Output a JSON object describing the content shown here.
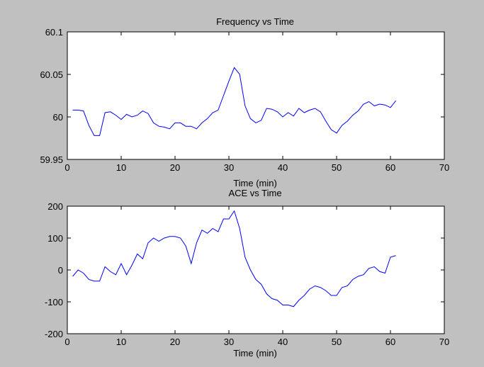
{
  "figure": {
    "background": "#c0c0c0",
    "line_color": "#0000ff"
  },
  "chart_data": [
    {
      "type": "line",
      "title": "Frequency vs Time",
      "xlabel": "Time (min)",
      "ylabel": "",
      "xlim": [
        0,
        70
      ],
      "ylim": [
        59.95,
        60.1
      ],
      "xticks": [
        0,
        10,
        20,
        30,
        40,
        50,
        60,
        70
      ],
      "yticks": [
        59.95,
        60,
        60.05,
        60.1
      ],
      "ytick_labels": [
        "59.95",
        "60",
        "60.05",
        "60.1"
      ],
      "grid": false,
      "series": [
        {
          "color": "#0000ff",
          "x": [
            1,
            2,
            3,
            4,
            5,
            6,
            7,
            8,
            9,
            10,
            11,
            12,
            13,
            14,
            15,
            16,
            17,
            18,
            19,
            20,
            21,
            22,
            23,
            24,
            25,
            26,
            27,
            28,
            29,
            30,
            31,
            32,
            33,
            34,
            35,
            36,
            37,
            38,
            39,
            40,
            41,
            42,
            43,
            44,
            45,
            46,
            47,
            48,
            49,
            50,
            51,
            52,
            53,
            54,
            55,
            56,
            57,
            58,
            59,
            60,
            61
          ],
          "y": [
            60.008,
            60.008,
            60.007,
            59.99,
            59.978,
            59.978,
            60.005,
            60.006,
            60.002,
            59.997,
            60.003,
            60.0,
            60.002,
            60.007,
            60.004,
            59.993,
            59.989,
            59.988,
            59.986,
            59.993,
            59.993,
            59.989,
            59.989,
            59.986,
            59.993,
            59.998,
            60.005,
            60.008,
            60.025,
            60.042,
            60.058,
            60.05,
            60.013,
            59.998,
            59.993,
            59.996,
            60.01,
            60.009,
            60.006,
            60.0,
            60.005,
            60.001,
            60.01,
            60.005,
            60.008,
            60.01,
            60.006,
            59.995,
            59.985,
            59.981,
            59.99,
            59.995,
            60.002,
            60.007,
            60.015,
            60.018,
            60.013,
            60.015,
            60.014,
            60.011,
            60.019
          ]
        }
      ]
    },
    {
      "type": "line",
      "title": "ACE vs Time",
      "xlabel": "Time (min)",
      "ylabel": "",
      "xlim": [
        0,
        70
      ],
      "ylim": [
        -200,
        200
      ],
      "xticks": [
        0,
        10,
        20,
        30,
        40,
        50,
        60,
        70
      ],
      "yticks": [
        -200,
        -100,
        0,
        100,
        200
      ],
      "ytick_labels": [
        "-200",
        "-100",
        "0",
        "100",
        "200"
      ],
      "grid": false,
      "series": [
        {
          "color": "#0000ff",
          "x": [
            1,
            2,
            3,
            4,
            5,
            6,
            7,
            8,
            9,
            10,
            11,
            12,
            13,
            14,
            15,
            16,
            17,
            18,
            19,
            20,
            21,
            22,
            23,
            24,
            25,
            26,
            27,
            28,
            29,
            30,
            31,
            32,
            33,
            34,
            35,
            36,
            37,
            38,
            39,
            40,
            41,
            42,
            43,
            44,
            45,
            46,
            47,
            48,
            49,
            50,
            51,
            52,
            53,
            54,
            55,
            56,
            57,
            58,
            59,
            60,
            61
          ],
          "y": [
            -20,
            0,
            -10,
            -30,
            -35,
            -35,
            10,
            -5,
            -15,
            20,
            -15,
            15,
            50,
            35,
            85,
            100,
            90,
            100,
            105,
            105,
            100,
            75,
            20,
            85,
            125,
            115,
            130,
            120,
            160,
            160,
            185,
            130,
            40,
            0,
            -30,
            -45,
            -75,
            -90,
            -95,
            -110,
            -110,
            -115,
            -95,
            -80,
            -60,
            -50,
            -55,
            -65,
            -80,
            -80,
            -55,
            -50,
            -30,
            -20,
            -15,
            5,
            10,
            -5,
            -10,
            40,
            45
          ]
        }
      ]
    }
  ]
}
